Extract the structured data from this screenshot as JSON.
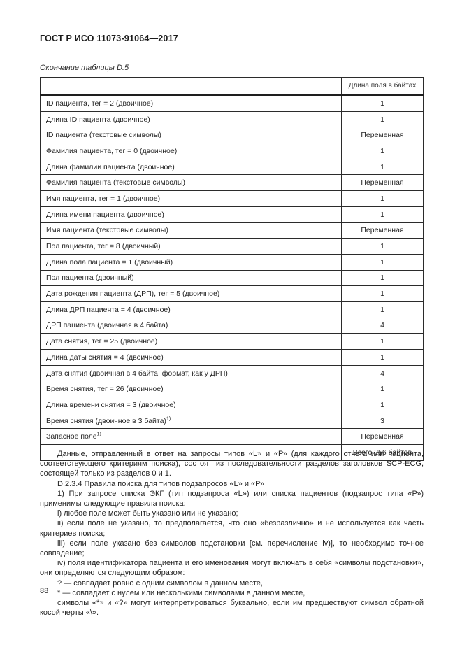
{
  "page": {
    "doc_header": "ГОСТ Р ИСО 11073-91064—2017",
    "table_caption": "Окончание таблицы D.5",
    "page_number": "88"
  },
  "table": {
    "header": {
      "col1": "",
      "col2": "Длина поля в байтах"
    },
    "rows": [
      {
        "label": "ID пациента, тег = 2 (двоичное)",
        "value": "1"
      },
      {
        "label": "Длина ID пациента (двоичное)",
        "value": "1"
      },
      {
        "label": "ID пациента (текстовые символы)",
        "value": "Переменная"
      },
      {
        "label": "Фамилия пациента, тег = 0 (двоичное)",
        "value": "1"
      },
      {
        "label": "Длина фамилии пациента (двоичное)",
        "value": "1"
      },
      {
        "label": "Фамилия пациента (текстовые символы)",
        "value": "Переменная"
      },
      {
        "label": "Имя пациента, тег = 1 (двоичное)",
        "value": "1"
      },
      {
        "label": "Длина имени пациента (двоичное)",
        "value": "1"
      },
      {
        "label": "Имя пациента (текстовые символы)",
        "value": "Переменная"
      },
      {
        "label": "Пол пациента, тег = 8 (двоичный)",
        "value": "1"
      },
      {
        "label": "Длина пола пациента = 1 (двоичный)",
        "value": "1"
      },
      {
        "label": "Пол пациента (двоичный)",
        "value": "1"
      },
      {
        "label": "Дата рождения пациента (ДРП), тег = 5 (двоичное)",
        "value": "1"
      },
      {
        "label": "Длина ДРП пациента = 4 (двоичное)",
        "value": "1"
      },
      {
        "label": "ДРП пациента (двоичная в 4 байта)",
        "value": "4"
      },
      {
        "label": "Дата снятия, тег = 25 (двоичное)",
        "value": "1"
      },
      {
        "label": "Длина даты снятия = 4 (двоичное)",
        "value": "1"
      },
      {
        "label": "Дата снятия (двоичная в 4 байта, формат, как у ДРП)",
        "value": "4"
      },
      {
        "label": "Время снятия, тег = 26 (двоичное)",
        "value": "1"
      },
      {
        "label": "Длина времени снятия = 3 (двоичное)",
        "value": "1"
      },
      {
        "label": "Время снятия (двоичное в 3 байта)",
        "sup": "1)",
        "value": "3"
      },
      {
        "label": "Запасное поле",
        "sup": "1)",
        "value": "Переменная"
      },
      {
        "label": "",
        "value": "Всего 256 байтов"
      }
    ]
  },
  "body": {
    "paragraphs": [
      "Данные, отправленный в ответ на запросы типов «L» и «Р» (для каждого отчета или пациента, соответствующего критериям поиска), состоят из последовательности разделов заголовков SCP-ECG, состоящей только из разделов 0 и 1.",
      "D.2.3.4 Правила поиска для типов подзапросов «L» и «Р»",
      "1) При запросе списка ЭКГ (тип подзапроса «L») или списка пациентов (подзапрос типа «Р») применимы следующие правила поиска:",
      "i) любое поле может быть указано или не указано;",
      "ii) если поле не указано, то предполагается, что оно «безразлично» и не используется как часть критериев поиска;",
      "iii) если поле указано без символов подстановки [см. перечисление iv)], то необходимо точное совпадение;",
      "iv) поля идентификатора пациента и его именования могут включать в себя «символы подстановки», они определяются следующим образом:",
      "? — совпадает ровно с одним символом в данном месте,",
      "* — совпадает с нулем или несколькими символами в данном месте,",
      "символы «*» и «?» могут интерпретироваться буквально, если им предшествуют символ обратной косой черты «\\»."
    ]
  }
}
